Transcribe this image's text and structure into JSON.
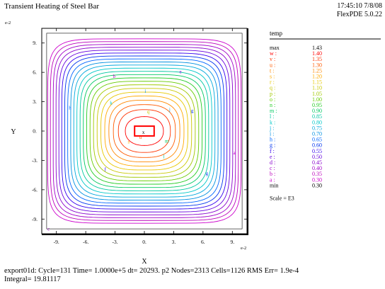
{
  "header": {
    "title": "Transient Heating of Steel Bar",
    "timestamp": "17:45:10 7/8/08",
    "version": "FlexPDE 5.0.22"
  },
  "footer": {
    "line1": "export01d:  Cycle=131  Time= 1.0000e+5  dt= 20293.  p2  Nodes=2313 Cells=1126 RMS Err= 1.9e-4",
    "line2": "Integral=  19.81117"
  },
  "chart_data": {
    "type": "contour",
    "title": "Transient Heating of Steel Bar",
    "xlabel": "X",
    "ylabel": "Y",
    "x_exponent_label": "e-2",
    "y_exponent_label": "e-2",
    "xlim": [
      -10.5,
      10.5
    ],
    "ylim": [
      -10.5,
      10.5
    ],
    "x_ticks": [
      -9,
      -6,
      -3,
      0,
      3,
      6,
      9
    ],
    "x_tick_labels": [
      "-9.",
      "-6.",
      "-3.",
      "0.",
      "3.",
      "6.",
      "9."
    ],
    "y_ticks": [
      9,
      6,
      3,
      0,
      -3,
      -6,
      -9
    ],
    "y_tick_labels": [
      "9.",
      "6.",
      "3.",
      "0.",
      "-3.",
      "-6.",
      "-9."
    ],
    "legend": {
      "variable": "temp",
      "max_label": "max",
      "max_value": "1.43",
      "min_label": "min",
      "min_value": "0.30",
      "scale": "Scale = E3",
      "levels": [
        {
          "key": "w :",
          "value": "1.40",
          "color": "#ff0000"
        },
        {
          "key": "v :",
          "value": "1.35",
          "color": "#ff3300"
        },
        {
          "key": "u :",
          "value": "1.30",
          "color": "#ff5a00"
        },
        {
          "key": "t :",
          "value": "1.25",
          "color": "#ff8800"
        },
        {
          "key": "s :",
          "value": "1.20",
          "color": "#ffaa00"
        },
        {
          "key": "r :",
          "value": "1.15",
          "color": "#e6c800"
        },
        {
          "key": "q :",
          "value": "1.10",
          "color": "#c8c800"
        },
        {
          "key": "p :",
          "value": "1.05",
          "color": "#a0c800"
        },
        {
          "key": "o :",
          "value": "1.00",
          "color": "#66cc00"
        },
        {
          "key": "n :",
          "value": "0.95",
          "color": "#22cc22"
        },
        {
          "key": "m :",
          "value": "0.90",
          "color": "#00c860"
        },
        {
          "key": "l :",
          "value": "0.85",
          "color": "#00c8a0"
        },
        {
          "key": "k :",
          "value": "0.80",
          "color": "#00c8c8"
        },
        {
          "key": "j :",
          "value": "0.75",
          "color": "#00a8dd"
        },
        {
          "key": "i :",
          "value": "0.70",
          "color": "#0090e0"
        },
        {
          "key": "h :",
          "value": "0.65",
          "color": "#0066ff"
        },
        {
          "key": "g :",
          "value": "0.60",
          "color": "#0033ee"
        },
        {
          "key": "f :",
          "value": "0.55",
          "color": "#3300ee"
        },
        {
          "key": "e :",
          "value": "0.50",
          "color": "#6600dd"
        },
        {
          "key": "d :",
          "value": "0.45",
          "color": "#8800cc"
        },
        {
          "key": "c :",
          "value": "0.40",
          "color": "#a000c8"
        },
        {
          "key": "b :",
          "value": "0.35",
          "color": "#bb00bb"
        },
        {
          "key": "a :",
          "value": "0.30",
          "color": "#cc00cc"
        }
      ]
    },
    "domain": {
      "x": [
        -10,
        10
      ],
      "y": [
        -10,
        10
      ]
    },
    "heated_region": {
      "x": [
        -1,
        1
      ],
      "y": [
        -0.5,
        0.5
      ]
    },
    "contour_count": 23,
    "contour_labels": [
      {
        "text": "a",
        "x": 9.2,
        "y": -2.2,
        "color": "#cc00cc"
      },
      {
        "text": "b",
        "x": -3.1,
        "y": 5.6,
        "color": "#bb00bb"
      },
      {
        "text": "c",
        "x": -9.8,
        "y": -10.0,
        "color": "#a000c8"
      },
      {
        "text": "e",
        "x": 3.7,
        "y": 6.1,
        "color": "#6600dd"
      },
      {
        "text": "f",
        "x": -4.0,
        "y": -3.9,
        "color": "#3300ee"
      },
      {
        "text": "g",
        "x": 4.9,
        "y": 2.1,
        "color": "#0033ee"
      },
      {
        "text": "g",
        "x": 6.4,
        "y": -4.3,
        "color": "#0033ee"
      },
      {
        "text": "h",
        "x": -7.6,
        "y": 2.4,
        "color": "#0066ff"
      },
      {
        "text": "i",
        "x": 0.1,
        "y": 4.1,
        "color": "#0090e0"
      },
      {
        "text": "j",
        "x": 2.6,
        "y": 2.2,
        "color": "#00a8dd"
      },
      {
        "text": "k",
        "x": -3.4,
        "y": 2.9,
        "color": "#00c8c8"
      },
      {
        "text": "l",
        "x": 2.0,
        "y": -2.6,
        "color": "#00c8a0"
      },
      {
        "text": "m",
        "x": 2.3,
        "y": -1.0,
        "color": "#00c860"
      },
      {
        "text": "q",
        "x": 0.4,
        "y": 2.0,
        "color": "#c8c800"
      },
      {
        "text": "s",
        "x": -1.6,
        "y": -1.1,
        "color": "#ffaa00"
      },
      {
        "text": "u",
        "x": -0.4,
        "y": -0.6,
        "color": "#ff5a00"
      },
      {
        "text": "x",
        "x": -0.1,
        "y": -0.1,
        "color": "#000000"
      }
    ]
  }
}
